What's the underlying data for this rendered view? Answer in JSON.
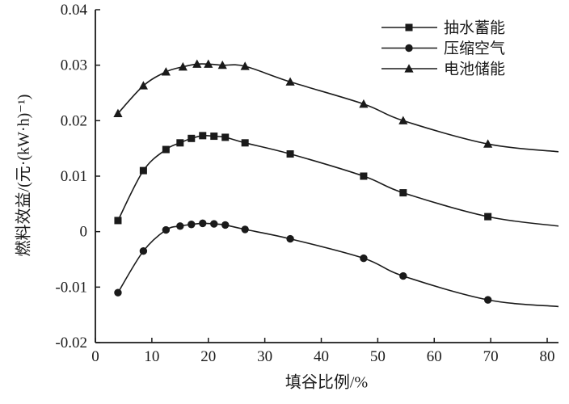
{
  "chart_data": {
    "type": "line",
    "title": "",
    "xlabel": "填谷比例/%",
    "ylabel": "燃料效益/(元·(kW·h)⁻¹)",
    "xlim": [
      0,
      82
    ],
    "ylim": [
      -0.02,
      0.04
    ],
    "x_ticks": [
      0,
      10,
      20,
      30,
      40,
      50,
      60,
      70,
      80
    ],
    "y_ticks": [
      -0.02,
      -0.01,
      0,
      0.01,
      0.02,
      0.03,
      0.04
    ],
    "y_tick_labels": [
      "-0.02",
      "-0.01",
      "0",
      "0.01",
      "0.02",
      "0.03",
      "0.04"
    ],
    "grid": false,
    "legend_position": "top-right-inside",
    "line_color": "#1a1a1a",
    "series": [
      {
        "name": "抽水蓄能",
        "marker": "square",
        "x": [
          4,
          8.5,
          12.5,
          15,
          17,
          19,
          21,
          23,
          26.5,
          34.5,
          47.5,
          54.5,
          69.5
        ],
        "y": [
          0.002,
          0.011,
          0.0148,
          0.016,
          0.0168,
          0.0173,
          0.0172,
          0.017,
          0.016,
          0.014,
          0.01,
          0.007,
          0.0027
        ],
        "line_end": {
          "x": 82,
          "y": 0.001
        }
      },
      {
        "name": "压缩空气",
        "marker": "circle",
        "x": [
          4,
          8.5,
          12.5,
          15,
          17,
          19,
          21,
          23,
          26.5,
          34.5,
          47.5,
          54.5,
          69.5
        ],
        "y": [
          -0.011,
          -0.0035,
          0.0003,
          0.001,
          0.0013,
          0.0015,
          0.0014,
          0.0012,
          0.0004,
          -0.0013,
          -0.0048,
          -0.008,
          -0.0123
        ],
        "line_end": {
          "x": 82,
          "y": -0.0135
        }
      },
      {
        "name": "电池储能",
        "marker": "triangle",
        "x": [
          4,
          8.5,
          12.5,
          15.5,
          18,
          20,
          22.5,
          26.5,
          34.5,
          47.5,
          54.5,
          69.5
        ],
        "y": [
          0.0213,
          0.0263,
          0.0288,
          0.0297,
          0.0302,
          0.0302,
          0.03,
          0.0298,
          0.027,
          0.023,
          0.02,
          0.0158
        ],
        "line_end": {
          "x": 82,
          "y": 0.0144
        }
      }
    ]
  }
}
